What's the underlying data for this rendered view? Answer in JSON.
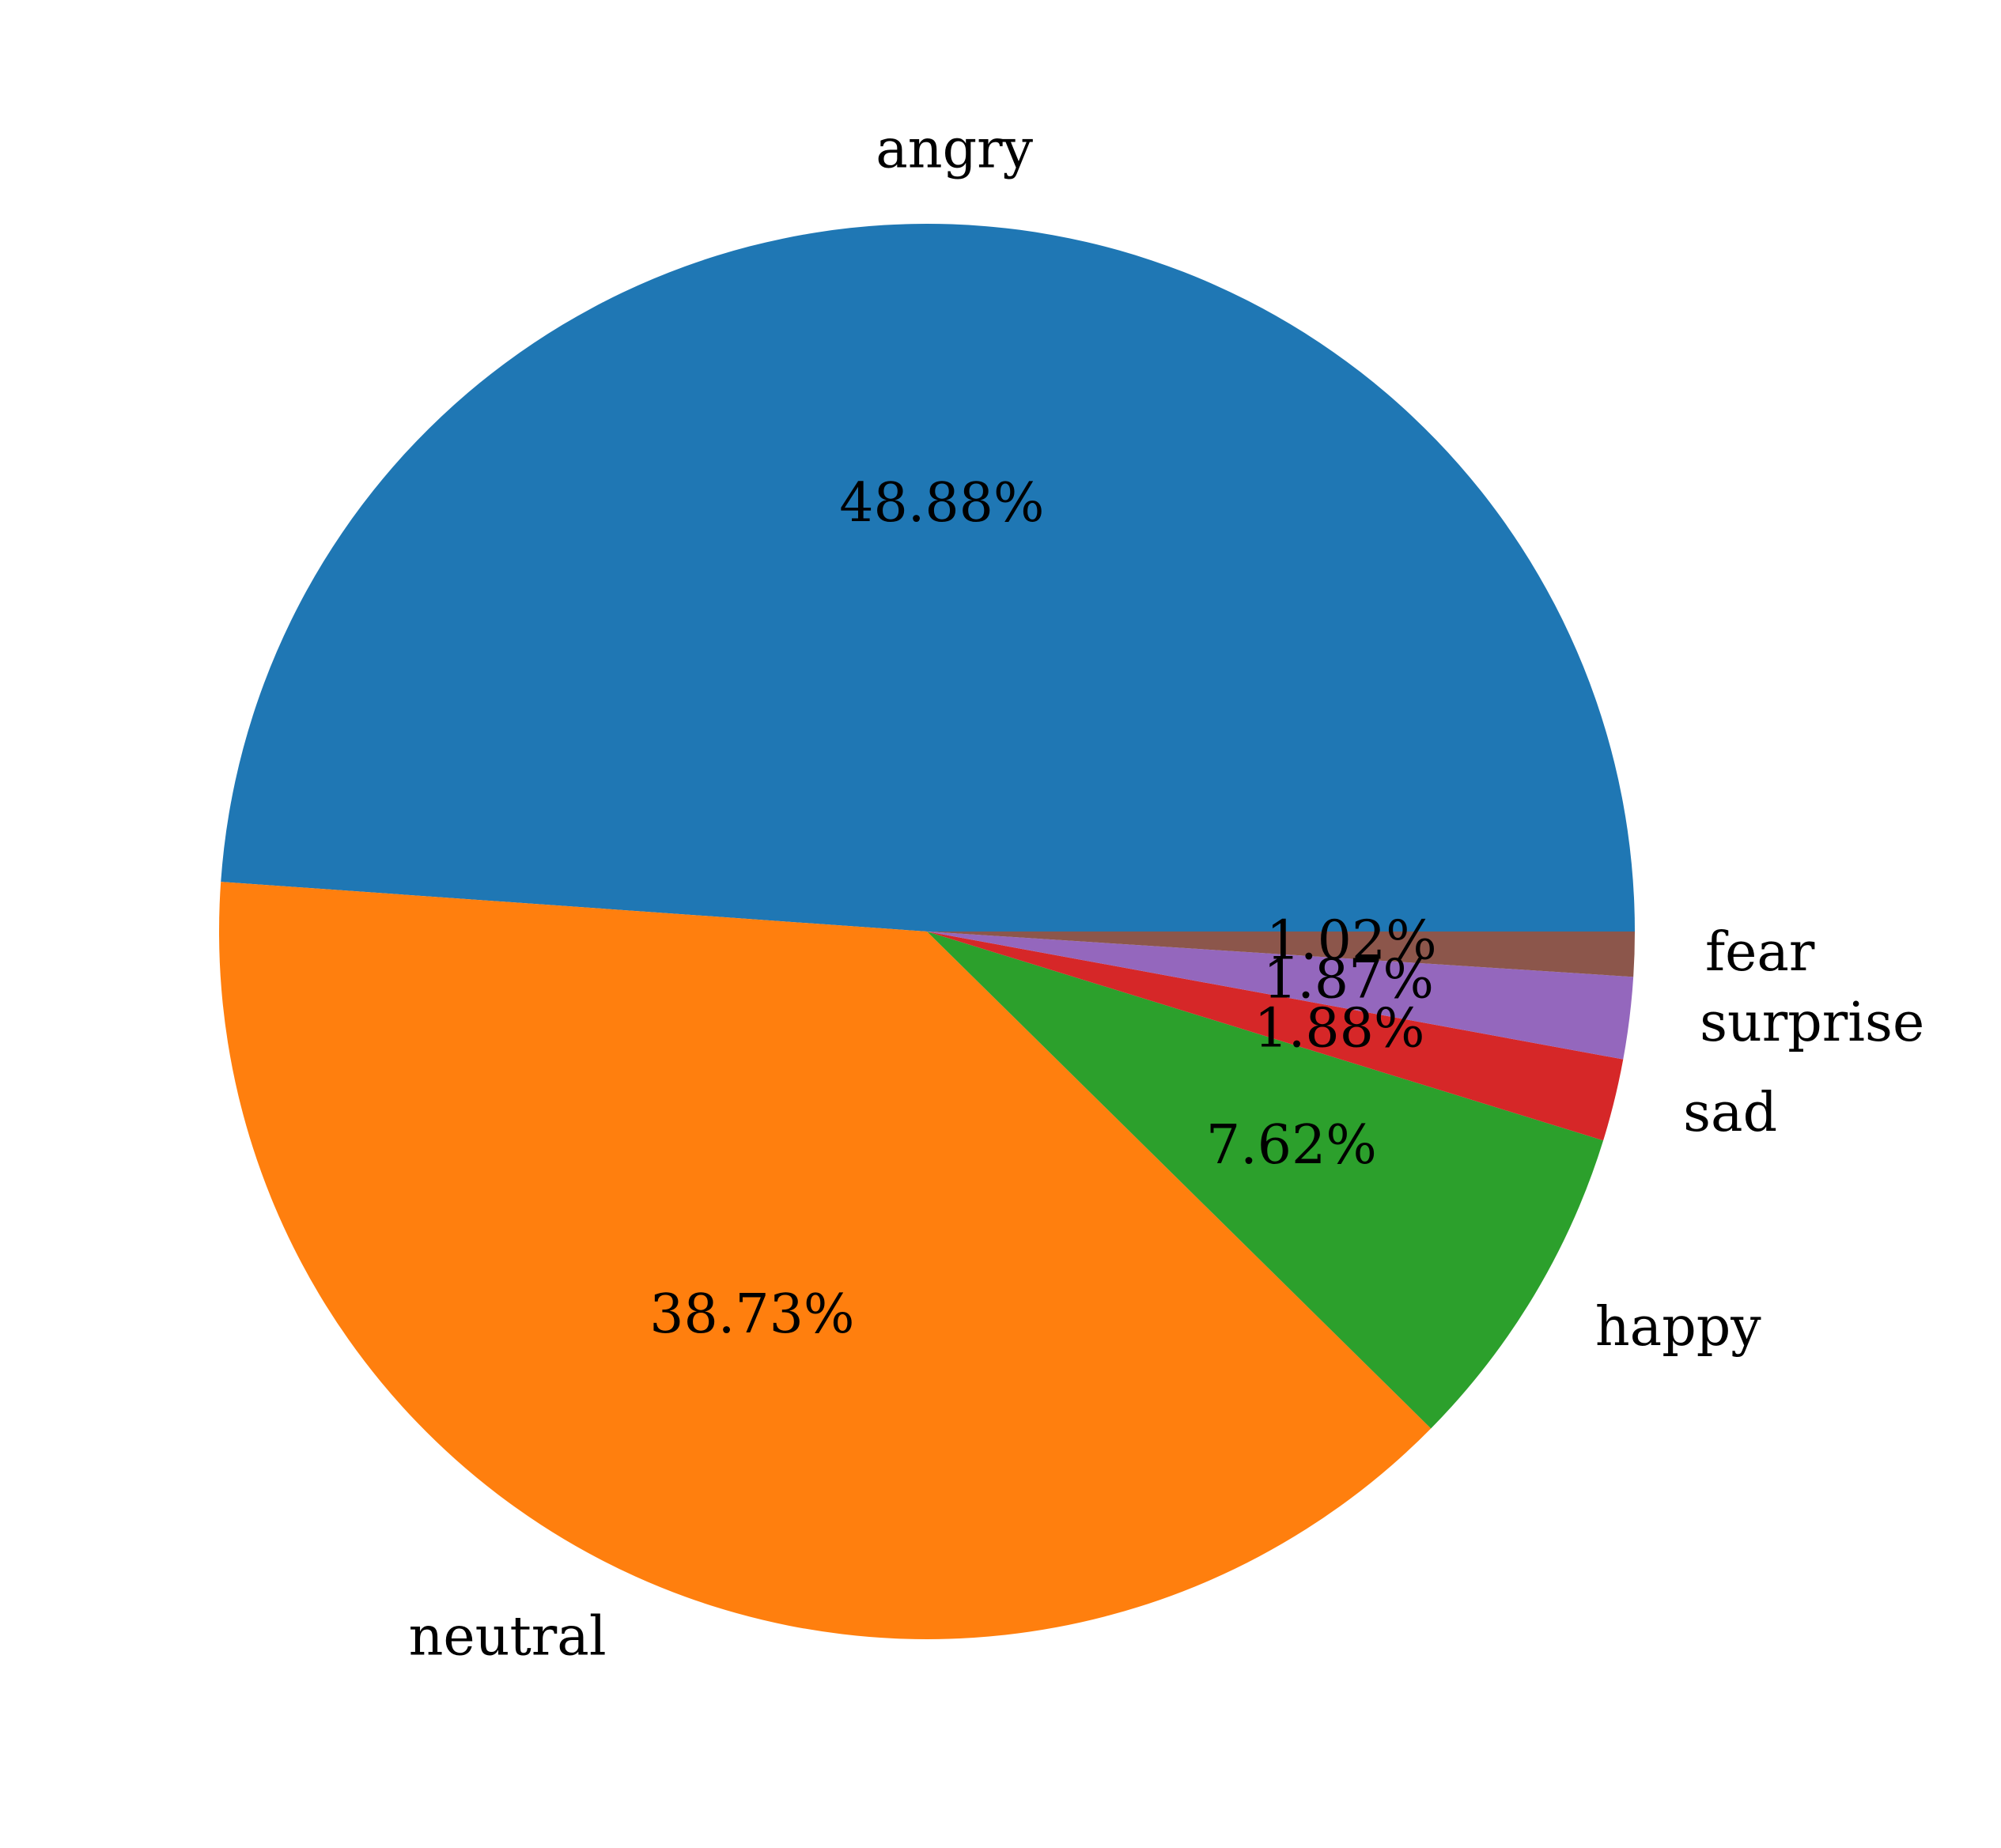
{
  "chart_data": {
    "type": "pie",
    "categories": [
      "angry",
      "neutral",
      "happy",
      "sad",
      "surprise",
      "fear"
    ],
    "values": [
      48.88,
      38.73,
      7.62,
      1.88,
      1.87,
      1.02
    ],
    "value_labels": [
      "48.88%",
      "38.73%",
      "7.62%",
      "1.88%",
      "1.87%",
      "1.02%"
    ],
    "colors": [
      "#1f77b4",
      "#ff7f0e",
      "#2ca02c",
      "#d62728",
      "#9467bd",
      "#8c564b"
    ],
    "start_angle_deg": 0,
    "direction": "counterclockwise",
    "legend": false
  }
}
